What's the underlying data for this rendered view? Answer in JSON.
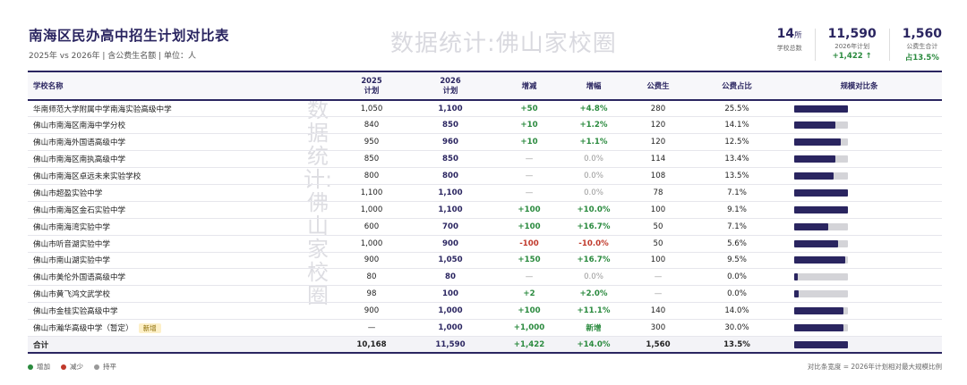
{
  "header": {
    "title": "南海区民办高中招生计划对比表",
    "subtitle": "2025年 vs 2026年 | 含公费生名额 | 单位：人"
  },
  "watermark": "数据统计:佛山家校圈",
  "stats": [
    {
      "value": "14",
      "unit": "所",
      "label": "学校总数",
      "delta": ""
    },
    {
      "value": "11,590",
      "unit": "",
      "label": "2026年计划",
      "delta": "+1,422 ↑"
    },
    {
      "value": "1,560",
      "unit": "",
      "label": "公费生合计",
      "delta": "占13.5%"
    }
  ],
  "columns": {
    "name": "学校名称",
    "y2025": "2025\n计划",
    "y2026": "2026\n计划",
    "change": "增减",
    "rate": "增幅",
    "public": "公费生",
    "public_ratio": "公费占比",
    "bar": "规模对比条"
  },
  "rows": [
    {
      "name": "华南师范大学附属中学南海实验高级中学",
      "y2025": "1,050",
      "y2026": "1,100",
      "change": "+50",
      "rate": "+4.8%",
      "public": "280",
      "ratio": "25.5%",
      "trend": "up",
      "bar": 1.0,
      "badge": ""
    },
    {
      "name": "佛山市南海区南海中学分校",
      "y2025": "840",
      "y2026": "850",
      "change": "+10",
      "rate": "+1.2%",
      "public": "120",
      "ratio": "14.1%",
      "trend": "up",
      "bar": 0.773,
      "badge": ""
    },
    {
      "name": "佛山市南海外国语高级中学",
      "y2025": "950",
      "y2026": "960",
      "change": "+10",
      "rate": "+1.1%",
      "public": "120",
      "ratio": "12.5%",
      "trend": "up",
      "bar": 0.873,
      "badge": ""
    },
    {
      "name": "佛山市南海区南执高级中学",
      "y2025": "850",
      "y2026": "850",
      "change": "—",
      "rate": "0.0%",
      "public": "114",
      "ratio": "13.4%",
      "trend": "flat",
      "bar": 0.773,
      "badge": ""
    },
    {
      "name": "佛山市南海区卓远未来实验学校",
      "y2025": "800",
      "y2026": "800",
      "change": "—",
      "rate": "0.0%",
      "public": "108",
      "ratio": "13.5%",
      "trend": "flat",
      "bar": 0.727,
      "badge": ""
    },
    {
      "name": "佛山市超盈实验中学",
      "y2025": "1,100",
      "y2026": "1,100",
      "change": "—",
      "rate": "0.0%",
      "public": "78",
      "ratio": "7.1%",
      "trend": "flat",
      "bar": 1.0,
      "badge": ""
    },
    {
      "name": "佛山市南海区金石实验中学",
      "y2025": "1,000",
      "y2026": "1,100",
      "change": "+100",
      "rate": "+10.0%",
      "public": "100",
      "ratio": "9.1%",
      "trend": "up",
      "bar": 1.0,
      "badge": ""
    },
    {
      "name": "佛山市南海湾实验中学",
      "y2025": "600",
      "y2026": "700",
      "change": "+100",
      "rate": "+16.7%",
      "public": "50",
      "ratio": "7.1%",
      "trend": "up",
      "bar": 0.636,
      "badge": ""
    },
    {
      "name": "佛山市听音湖实验中学",
      "y2025": "1,000",
      "y2026": "900",
      "change": "-100",
      "rate": "-10.0%",
      "public": "50",
      "ratio": "5.6%",
      "trend": "down",
      "bar": 0.818,
      "badge": ""
    },
    {
      "name": "佛山市南山湖实验中学",
      "y2025": "900",
      "y2026": "1,050",
      "change": "+150",
      "rate": "+16.7%",
      "public": "100",
      "ratio": "9.5%",
      "trend": "up",
      "bar": 0.955,
      "badge": ""
    },
    {
      "name": "佛山市美伦外国语高级中学",
      "y2025": "80",
      "y2026": "80",
      "change": "—",
      "rate": "0.0%",
      "public": "—",
      "ratio": "0.0%",
      "trend": "flat",
      "bar": 0.073,
      "badge": ""
    },
    {
      "name": "佛山市黄飞鸿文武学校",
      "y2025": "98",
      "y2026": "100",
      "change": "+2",
      "rate": "+2.0%",
      "public": "—",
      "ratio": "0.0%",
      "trend": "up",
      "bar": 0.091,
      "badge": ""
    },
    {
      "name": "佛山市金桂实验高级中学",
      "y2025": "900",
      "y2026": "1,000",
      "change": "+100",
      "rate": "+11.1%",
      "public": "140",
      "ratio": "14.0%",
      "trend": "up",
      "bar": 0.909,
      "badge": ""
    },
    {
      "name": "佛山市瀚华高级中学（暂定）",
      "y2025": "—",
      "y2026": "1,000",
      "change": "+1,000",
      "rate": "新增",
      "public": "300",
      "ratio": "30.0%",
      "trend": "up",
      "bar": 0.909,
      "badge": "新增"
    }
  ],
  "total": {
    "name": "合计",
    "y2025": "10,168",
    "y2026": "11,590",
    "change": "+1,422",
    "rate": "+14.0%",
    "public": "1,560",
    "ratio": "13.5%",
    "bar": 1.0
  },
  "legend": [
    {
      "label": "增加",
      "color": "#2a8a3e"
    },
    {
      "label": "减少",
      "color": "#c0392b"
    },
    {
      "label": "持平",
      "color": "#999999"
    }
  ],
  "footnote": "对比条宽度 = 2026年计划相对最大规模比例",
  "colors": {
    "accent": "#2a2560",
    "up": "#2a8a3e",
    "down": "#c0392b",
    "flat": "#999999"
  }
}
